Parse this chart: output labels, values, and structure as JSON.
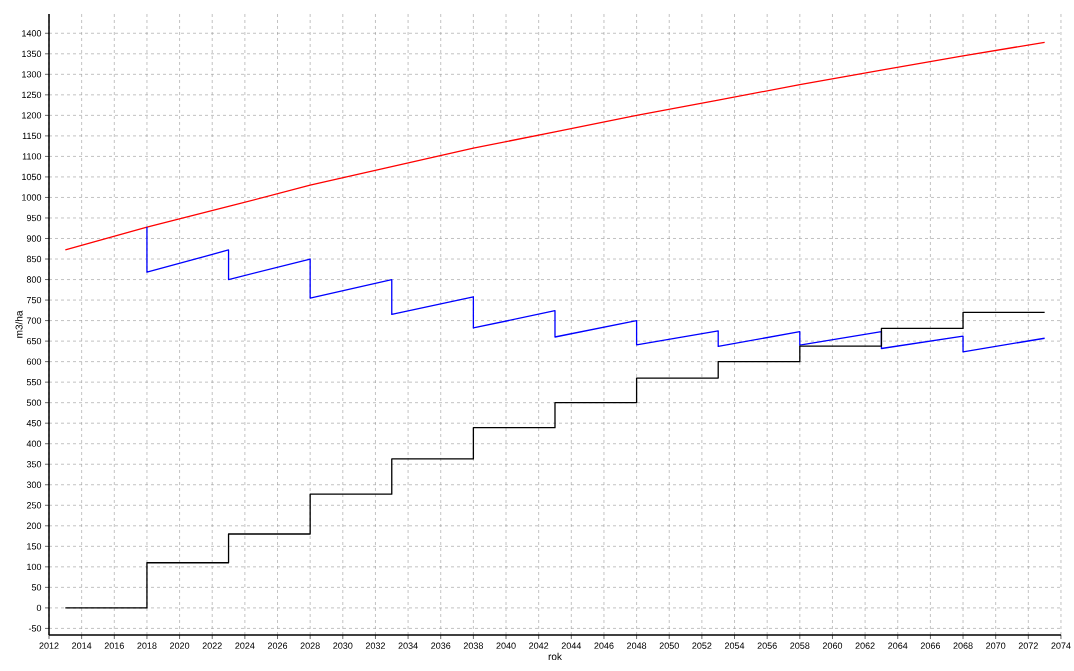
{
  "chart_data": {
    "type": "line",
    "xlabel": "rok",
    "ylabel": "m3/ha",
    "xlim": [
      2012,
      2074
    ],
    "ylim": [
      -66,
      1447
    ],
    "xticks": [
      2012,
      2014,
      2016,
      2018,
      2020,
      2022,
      2024,
      2026,
      2028,
      2030,
      2032,
      2034,
      2036,
      2038,
      2040,
      2042,
      2044,
      2046,
      2048,
      2050,
      2052,
      2054,
      2056,
      2058,
      2060,
      2062,
      2064,
      2066,
      2068,
      2070,
      2072,
      2074
    ],
    "yticks": [
      -50,
      0,
      50,
      100,
      150,
      200,
      250,
      300,
      350,
      400,
      450,
      500,
      550,
      600,
      650,
      700,
      750,
      800,
      850,
      900,
      950,
      1000,
      1050,
      1100,
      1150,
      1200,
      1250,
      1300,
      1350,
      1400
    ],
    "grid": true,
    "series": [
      {
        "type": "line",
        "color": "#ff0000",
        "x": [
          2013,
          2018,
          2023,
          2028,
          2033,
          2038,
          2043,
          2048,
          2053,
          2058,
          2063,
          2068,
          2073
        ],
        "values": [
          872,
          928,
          978,
          1030,
          1075,
          1120,
          1160,
          1200,
          1237,
          1275,
          1310,
          1345,
          1378
        ]
      },
      {
        "type": "line",
        "color": "#0000ff",
        "x": [
          2018,
          2018,
          2023,
          2023,
          2028,
          2028,
          2033,
          2033,
          2038,
          2038,
          2043,
          2043,
          2048,
          2048,
          2053,
          2053,
          2058,
          2058,
          2063,
          2063,
          2068,
          2068,
          2073
        ],
        "values": [
          928,
          818,
          872,
          800,
          850,
          755,
          800,
          715,
          758,
          682,
          724,
          660,
          700,
          641,
          675,
          637,
          673,
          640,
          673,
          632,
          662,
          624,
          657
        ]
      },
      {
        "type": "step",
        "color": "#000000",
        "x": [
          2013,
          2018,
          2023,
          2028,
          2033,
          2038,
          2043,
          2048,
          2053,
          2058,
          2063,
          2068,
          2073
        ],
        "values": [
          0,
          110,
          180,
          277,
          363,
          439,
          500,
          560,
          600,
          638,
          681,
          720,
          720
        ]
      }
    ]
  }
}
